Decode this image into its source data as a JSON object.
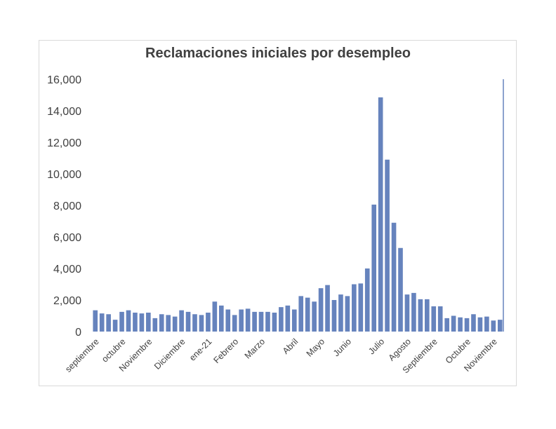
{
  "chart_data": {
    "type": "bar",
    "title": "Reclamaciones iniciales por desempleo",
    "xlabel": "",
    "ylabel": "",
    "ylim": [
      0,
      16000
    ],
    "yticks": [
      "0",
      "2,000",
      "4,000",
      "6,000",
      "8,000",
      "10,000",
      "12,000",
      "14,000",
      "16,000"
    ],
    "ytick_values": [
      0,
      2000,
      4000,
      6000,
      8000,
      10000,
      12000,
      14000,
      16000
    ],
    "x_month_labels": [
      {
        "label": "septiembre",
        "index": 0
      },
      {
        "label": "octubre",
        "index": 4
      },
      {
        "label": "Noviembre",
        "index": 8
      },
      {
        "label": "Diciembre",
        "index": 13
      },
      {
        "label": "ene-21",
        "index": 17
      },
      {
        "label": "Febrero",
        "index": 21
      },
      {
        "label": "Marzo",
        "index": 25
      },
      {
        "label": "Abril",
        "index": 30
      },
      {
        "label": "Mayo",
        "index": 34
      },
      {
        "label": "Junio",
        "index": 38
      },
      {
        "label": "Julio",
        "index": 43
      },
      {
        "label": "Agosto",
        "index": 47
      },
      {
        "label": "Septiembre",
        "index": 51
      },
      {
        "label": "Octubre",
        "index": 56
      },
      {
        "label": "Noviembre",
        "index": 60
      }
    ],
    "values": [
      1350,
      1150,
      1100,
      750,
      1250,
      1350,
      1200,
      1150,
      1200,
      850,
      1100,
      1050,
      950,
      1350,
      1250,
      1100,
      1050,
      1200,
      1900,
      1650,
      1400,
      1050,
      1400,
      1450,
      1250,
      1250,
      1250,
      1200,
      1550,
      1650,
      1400,
      2250,
      2150,
      1900,
      2750,
      2950,
      2000,
      2350,
      2250,
      3000,
      3050,
      4000,
      8050,
      14850,
      10900,
      6900,
      5300,
      2350,
      2450,
      2050,
      2050,
      1600,
      1600,
      850,
      1000,
      900,
      850,
      1100,
      900,
      950,
      700,
      750
    ],
    "bar_color": "#6683bd",
    "grid": false,
    "legend": "none"
  }
}
